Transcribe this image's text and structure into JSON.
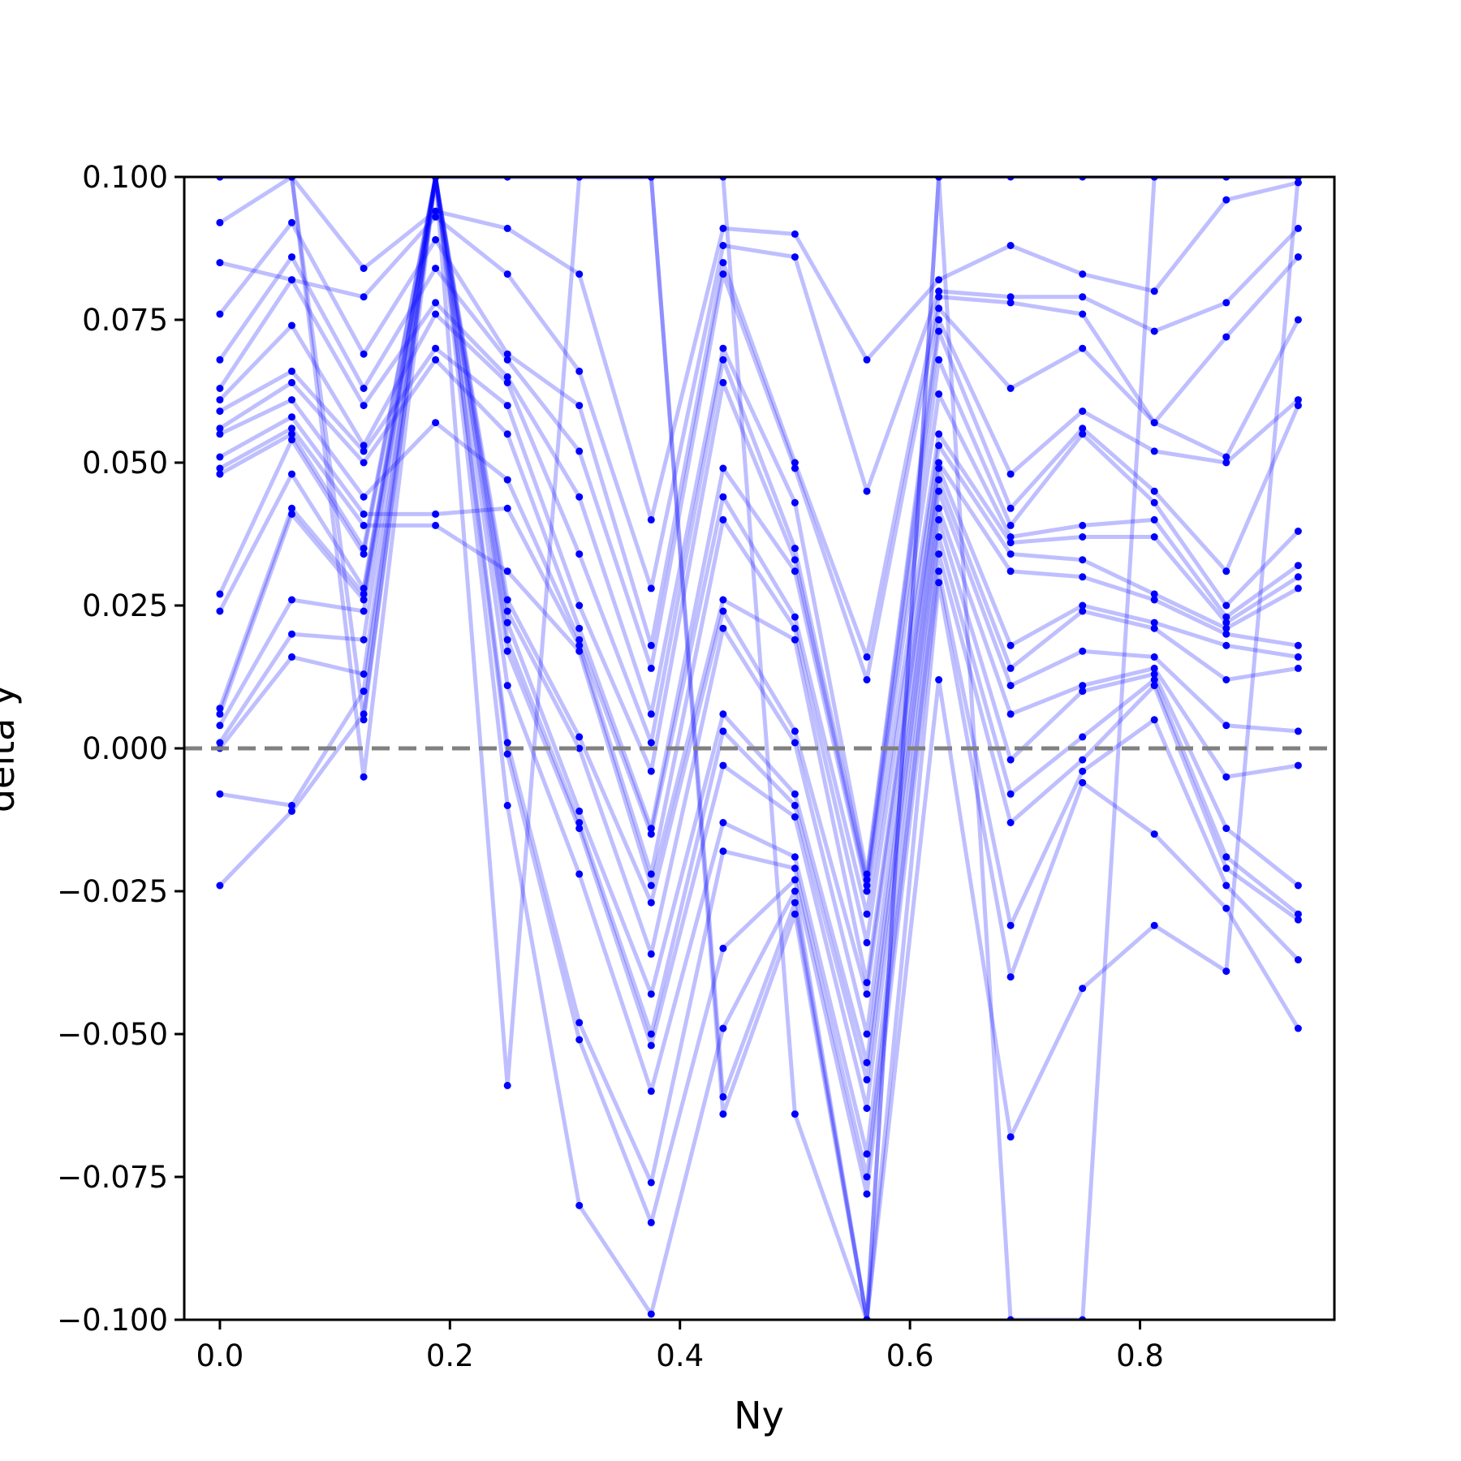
{
  "chart_data": {
    "type": "line",
    "title": "",
    "xlabel": "Ny",
    "ylabel": "delta y",
    "xlim": [
      -0.031,
      0.969
    ],
    "ylim": [
      -0.1,
      0.1
    ],
    "xticks": [
      0.0,
      0.2,
      0.4,
      0.6,
      0.8
    ],
    "xtick_labels": [
      "0.0",
      "0.2",
      "0.4",
      "0.6",
      "0.8"
    ],
    "yticks": [
      -0.1,
      -0.075,
      -0.05,
      -0.025,
      0.0,
      0.025,
      0.05,
      0.075,
      0.1
    ],
    "ytick_labels": [
      "−0.100",
      "−0.075",
      "−0.050",
      "−0.025",
      "0.000",
      "0.025",
      "0.050",
      "0.075",
      "0.100"
    ],
    "grid": false,
    "reference_line": {
      "y": 0.0,
      "style": "dashed",
      "color": "#808080"
    },
    "series_color": "#0000ff",
    "x": [
      0.0,
      0.0625,
      0.125,
      0.1875,
      0.25,
      0.3125,
      0.375,
      0.4375,
      0.5,
      0.5625,
      0.625,
      0.6875,
      0.75,
      0.8125,
      0.875,
      0.9375
    ],
    "series": [
      {
        "values": [
          0.092,
          0.1,
          0.084,
          0.094,
          0.091,
          0.083,
          0.04,
          0.091,
          0.09,
          0.068,
          0.082,
          0.088,
          0.083,
          0.08,
          0.096,
          0.099
        ]
      },
      {
        "values": [
          0.085,
          0.082,
          0.079,
          0.093,
          0.083,
          0.066,
          0.028,
          0.088,
          0.086,
          0.045,
          0.08,
          0.079,
          0.079,
          0.073,
          0.078,
          0.091
        ]
      },
      {
        "values": [
          0.076,
          0.092,
          0.069,
          0.089,
          0.069,
          0.06,
          0.018,
          0.085,
          0.05,
          0.016,
          0.079,
          0.078,
          0.076,
          0.057,
          0.072,
          0.086
        ]
      },
      {
        "values": [
          0.068,
          0.086,
          0.063,
          0.084,
          0.068,
          0.052,
          0.014,
          0.083,
          0.049,
          0.012,
          0.077,
          0.063,
          0.07,
          0.057,
          0.051,
          0.075
        ]
      },
      {
        "values": [
          0.063,
          0.082,
          0.06,
          0.078,
          0.065,
          0.044,
          0.006,
          0.07,
          0.043,
          -0.022,
          0.075,
          0.048,
          0.059,
          0.052,
          0.05,
          0.061
        ]
      },
      {
        "values": [
          0.061,
          0.074,
          0.053,
          0.076,
          0.064,
          0.034,
          0.001,
          0.068,
          0.035,
          -0.023,
          0.073,
          0.042,
          0.056,
          0.045,
          0.031,
          0.06
        ]
      },
      {
        "values": [
          0.059,
          0.066,
          0.052,
          0.07,
          0.06,
          0.025,
          -0.004,
          0.064,
          0.033,
          -0.024,
          0.068,
          0.039,
          0.055,
          0.043,
          0.025,
          0.038
        ]
      },
      {
        "values": [
          0.056,
          0.064,
          0.05,
          0.068,
          0.055,
          0.021,
          -0.014,
          0.049,
          0.031,
          -0.025,
          0.062,
          0.037,
          0.039,
          0.04,
          0.023,
          0.032
        ]
      },
      {
        "values": [
          0.055,
          0.061,
          0.044,
          0.057,
          0.047,
          0.019,
          -0.015,
          0.044,
          0.023,
          -0.029,
          0.055,
          0.036,
          0.037,
          0.037,
          0.022,
          0.03
        ]
      },
      {
        "values": [
          0.051,
          0.058,
          0.041,
          0.041,
          0.042,
          0.018,
          -0.022,
          0.04,
          0.021,
          -0.034,
          0.053,
          0.034,
          0.033,
          0.027,
          0.021,
          0.028
        ]
      },
      {
        "values": [
          0.049,
          0.056,
          0.039,
          0.039,
          0.031,
          0.017,
          -0.024,
          0.026,
          0.019,
          -0.041,
          0.05,
          0.031,
          0.03,
          0.026,
          0.02,
          0.018
        ]
      },
      {
        "values": [
          0.048,
          0.055,
          0.035,
          0.1,
          0.026,
          0.002,
          -0.027,
          0.024,
          0.003,
          -0.043,
          0.049,
          0.018,
          0.025,
          0.022,
          0.018,
          0.016
        ]
      },
      {
        "values": [
          0.027,
          0.054,
          0.034,
          0.1,
          0.024,
          0.0,
          -0.036,
          0.021,
          0.001,
          -0.05,
          0.047,
          0.014,
          0.024,
          0.021,
          0.012,
          0.014
        ]
      },
      {
        "values": [
          0.024,
          0.048,
          0.028,
          0.1,
          0.022,
          -0.011,
          -0.043,
          0.006,
          -0.008,
          -0.055,
          0.045,
          0.011,
          0.017,
          0.016,
          0.004,
          0.003
        ]
      },
      {
        "values": [
          0.007,
          0.042,
          0.027,
          0.1,
          0.019,
          -0.013,
          -0.05,
          0.003,
          -0.01,
          -0.058,
          0.042,
          0.006,
          0.011,
          0.014,
          -0.005,
          -0.003
        ]
      },
      {
        "values": [
          0.006,
          0.041,
          0.026,
          0.1,
          0.017,
          -0.014,
          -0.052,
          -0.003,
          -0.012,
          -0.063,
          0.04,
          -0.002,
          0.01,
          0.013,
          -0.014,
          -0.024
        ]
      },
      {
        "values": [
          0.004,
          0.026,
          0.024,
          0.1,
          0.011,
          -0.022,
          -0.06,
          -0.013,
          -0.019,
          -0.071,
          0.037,
          -0.008,
          0.002,
          0.012,
          -0.019,
          -0.029
        ]
      },
      {
        "values": [
          0.001,
          0.02,
          0.019,
          0.1,
          0.001,
          -0.048,
          -0.076,
          -0.018,
          -0.021,
          -0.075,
          0.034,
          -0.013,
          -0.002,
          0.011,
          -0.021,
          -0.03
        ]
      },
      {
        "values": [
          0.0,
          0.016,
          0.013,
          0.1,
          -0.001,
          -0.051,
          -0.083,
          -0.035,
          -0.023,
          -0.078,
          0.031,
          -0.031,
          -0.004,
          0.005,
          -0.024,
          -0.037
        ]
      },
      {
        "values": [
          -0.008,
          -0.01,
          0.01,
          0.1,
          -0.01,
          -0.08,
          -0.099,
          -0.049,
          -0.025,
          -0.1,
          0.029,
          -0.04,
          -0.006,
          -0.015,
          -0.028,
          -0.049
        ]
      },
      {
        "values": [
          -0.024,
          -0.011,
          0.006,
          0.1,
          -0.059,
          0.1,
          0.1,
          -0.061,
          -0.027,
          -0.1,
          0.012,
          -0.068,
          -0.042,
          -0.031,
          -0.039,
          0.1
        ]
      },
      {
        "values": [
          0.1,
          0.1,
          0.005,
          0.1,
          0.1,
          0.1,
          0.1,
          -0.064,
          -0.029,
          -0.1,
          0.1,
          -0.1,
          -0.1,
          0.1,
          0.1,
          0.1
        ]
      },
      {
        "values": [
          0.1,
          0.1,
          -0.005,
          0.1,
          0.1,
          0.1,
          0.1,
          0.1,
          -0.064,
          -0.1,
          0.1,
          0.1,
          0.1,
          0.1,
          0.1,
          0.1
        ]
      }
    ]
  }
}
